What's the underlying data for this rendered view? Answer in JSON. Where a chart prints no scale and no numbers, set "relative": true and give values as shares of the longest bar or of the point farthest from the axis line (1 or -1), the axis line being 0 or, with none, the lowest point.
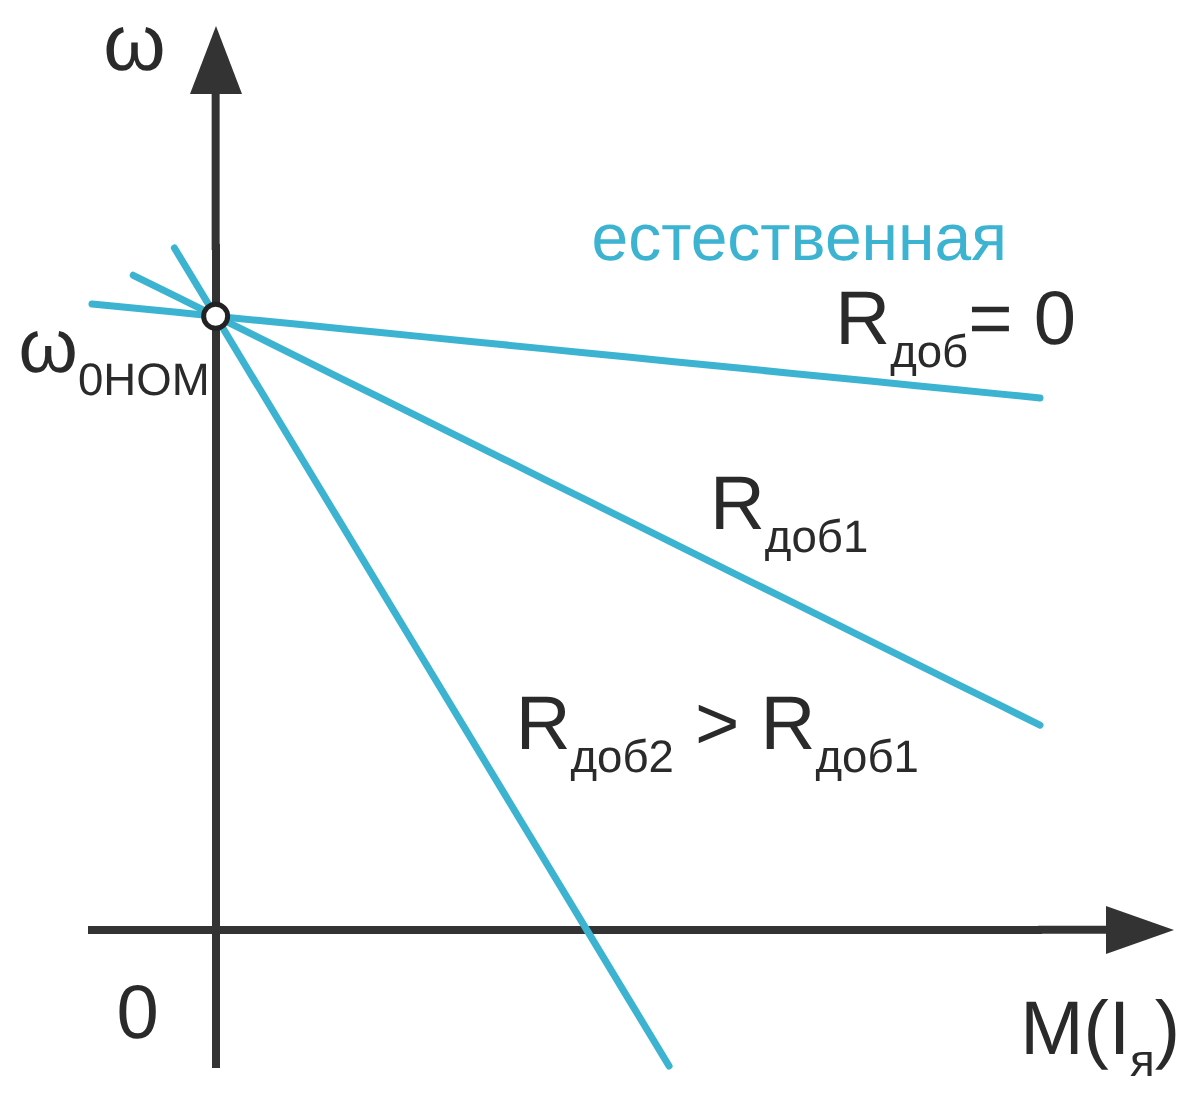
{
  "chart_data": {
    "type": "line",
    "relative": true,
    "xlabel": "M(I$_{я}$)",
    "ylabel": "ω",
    "marker": "none",
    "categories": [
      null,
      null,
      null,
      null,
      null,
      null,
      null,
      null,
      null,
      null,
      null,
      null,
      null,
      null,
      null,
      null,
      null,
      null,
      null,
      null,
      null,
      null,
      null,
      null
    ],
    "annotations": [
      {
        "text": "ω$_{0НОМ}$",
        "y": 0.9
      },
      "0",
      {
        "text": "R$_{доб}$= 0",
        "y": 0.78
      }
    ],
    "series": [
      {
        "name": "естественная",
        "color": "#3bb3d1",
        "values": [
          0.918,
          0.912,
          0.906,
          0.9,
          0.894,
          0.888,
          0.882,
          0.876,
          0.87,
          0.864,
          0.858,
          0.852,
          0.846,
          0.84,
          0.834,
          0.828,
          0.822,
          0.816,
          0.81,
          0.804,
          0.798,
          0.792,
          0.786,
          0.78
        ]
      },
      {
        "name": "R$_{доб1}$",
        "color": "#3bb3d1",
        "values": [
          null,
          0.96,
          0.93,
          0.9,
          0.87,
          0.84,
          0.81,
          0.78,
          0.75,
          0.72,
          0.69,
          0.66,
          0.63,
          0.6,
          0.57,
          0.54,
          0.51,
          0.48,
          0.45,
          0.42,
          0.39,
          0.36,
          0.33,
          0.3
        ]
      },
      {
        "name": "R$_{доб2}$ > R$_{доб1}$",
        "color": "#3bb3d1",
        "values": [
          null,
          null,
          1.0,
          0.9,
          0.8,
          0.7,
          0.6,
          0.5,
          0.4,
          0.3,
          0.2,
          0.1,
          0.0,
          -0.1,
          -0.2,
          null,
          null,
          null,
          null,
          null,
          null,
          null,
          null,
          null
        ]
      },
      {
        "color": "#222222",
        "marker": "circle",
        "values": [
          null,
          null,
          null,
          0.9,
          null,
          null,
          null,
          null,
          null,
          null,
          null,
          null,
          null,
          null,
          null,
          null,
          null,
          null,
          null,
          null,
          null,
          null,
          null,
          null
        ]
      }
    ]
  }
}
